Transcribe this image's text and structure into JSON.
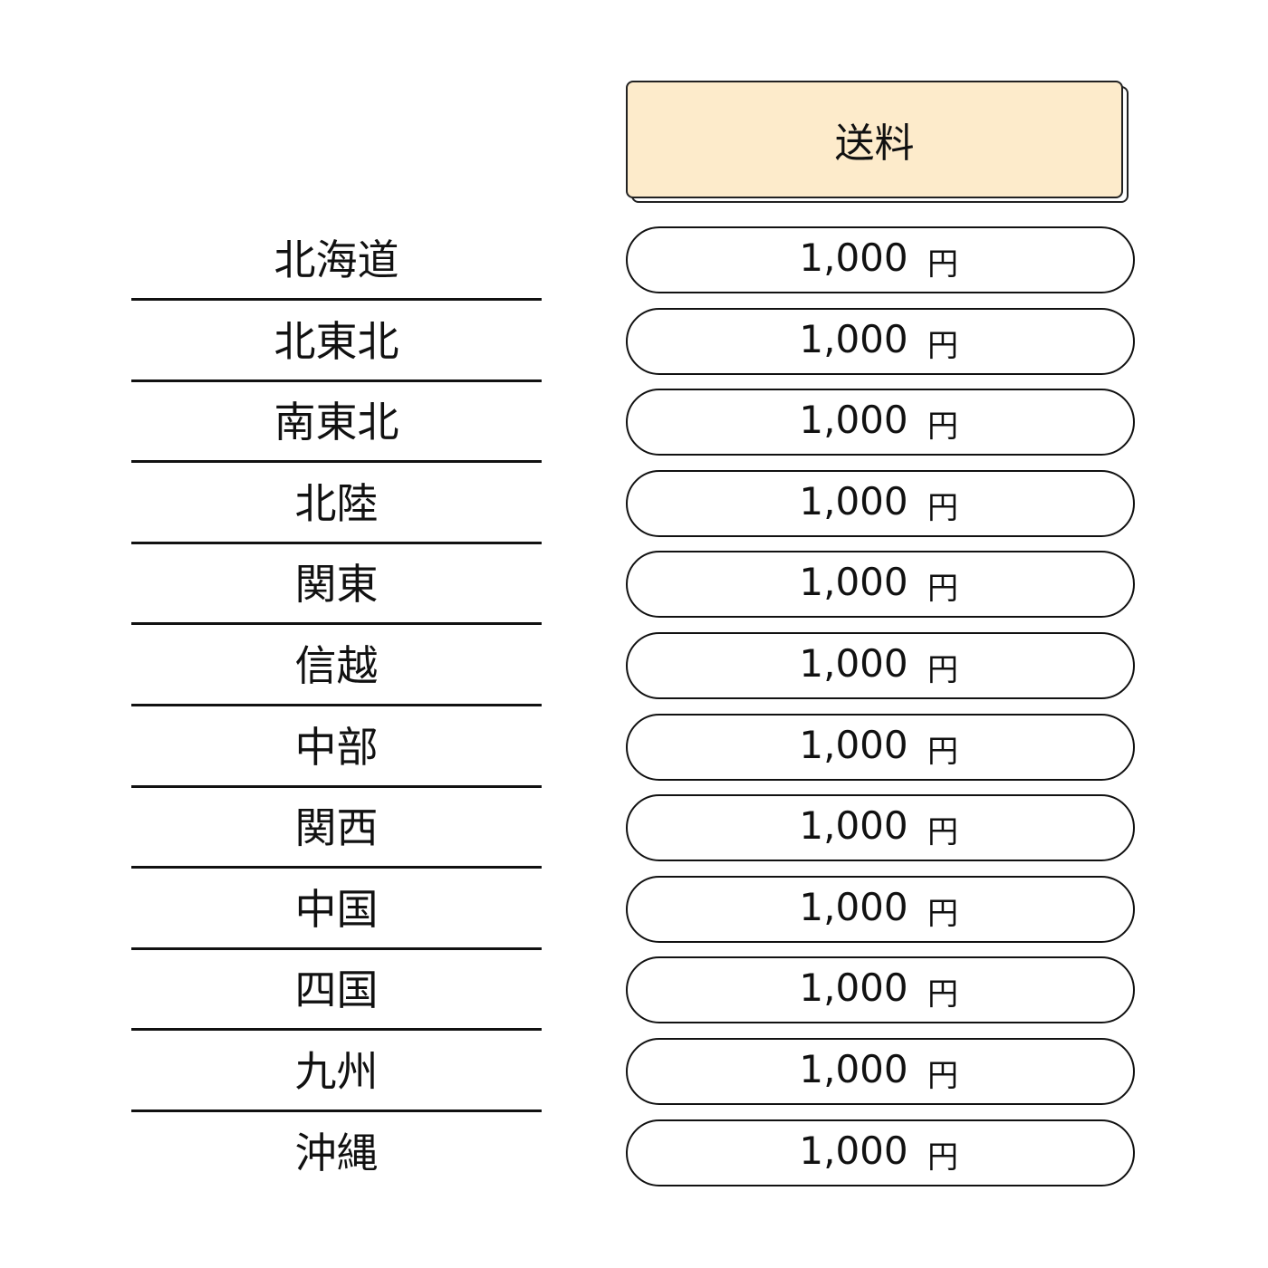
{
  "header": {
    "title": "送料"
  },
  "rows": [
    {
      "region": "北海道",
      "price": "1,000",
      "unit": "円"
    },
    {
      "region": "北東北",
      "price": "1,000",
      "unit": "円"
    },
    {
      "region": "南東北",
      "price": "1,000",
      "unit": "円"
    },
    {
      "region": "北陸",
      "price": "1,000",
      "unit": "円"
    },
    {
      "region": "関東",
      "price": "1,000",
      "unit": "円"
    },
    {
      "region": "信越",
      "price": "1,000",
      "unit": "円"
    },
    {
      "region": "中部",
      "price": "1,000",
      "unit": "円"
    },
    {
      "region": "関西",
      "price": "1,000",
      "unit": "円"
    },
    {
      "region": "中国",
      "price": "1,000",
      "unit": "円"
    },
    {
      "region": "四国",
      "price": "1,000",
      "unit": "円"
    },
    {
      "region": "九州",
      "price": "1,000",
      "unit": "円"
    },
    {
      "region": "沖縄",
      "price": "1,000",
      "unit": "円"
    }
  ]
}
